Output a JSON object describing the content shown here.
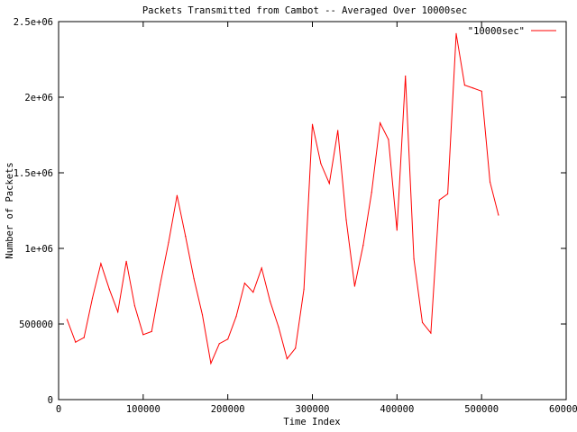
{
  "chart_data": {
    "type": "line",
    "title": "Packets Transmitted from Cambot -- Averaged Over 10000sec",
    "xlabel": "Time Index",
    "ylabel": "Number of Packets",
    "xlim": [
      0,
      600000
    ],
    "ylim": [
      0,
      2500000
    ],
    "x_ticks": [
      0,
      100000,
      200000,
      300000,
      400000,
      500000,
      600000
    ],
    "x_tick_labels": [
      "0",
      "100000",
      "200000",
      "300000",
      "400000",
      "500000",
      "600000"
    ],
    "y_ticks": [
      0,
      500000,
      1000000,
      1500000,
      2000000,
      2500000
    ],
    "y_tick_labels": [
      "0",
      "500000",
      "1e+06",
      "1.5e+06",
      "2e+06",
      "2.5e+06"
    ],
    "grid": false,
    "legend_position": "top-right",
    "series": [
      {
        "name": "\"10000sec\"",
        "color": "#ff0000",
        "x": [
          10000,
          20000,
          30000,
          40000,
          50000,
          60000,
          70000,
          80000,
          90000,
          100000,
          110000,
          120000,
          130000,
          140000,
          150000,
          160000,
          170000,
          180000,
          190000,
          200000,
          210000,
          220000,
          230000,
          240000,
          250000,
          260000,
          270000,
          280000,
          290000,
          300000,
          310000,
          320000,
          330000,
          340000,
          350000,
          360000,
          370000,
          380000,
          390000,
          400000,
          410000,
          420000,
          430000,
          440000,
          450000,
          460000,
          470000,
          480000,
          490000,
          500000,
          510000,
          520000
        ],
        "y": [
          530000,
          380000,
          410000,
          670000,
          900000,
          730000,
          580000,
          915000,
          620000,
          430000,
          450000,
          760000,
          1040000,
          1350000,
          1080000,
          800000,
          560000,
          240000,
          370000,
          400000,
          550000,
          770000,
          710000,
          870000,
          650000,
          480000,
          270000,
          340000,
          730000,
          1820000,
          1560000,
          1430000,
          1780000,
          1190000,
          750000,
          1020000,
          1370000,
          1830000,
          1720000,
          1120000,
          2140000,
          930000,
          510000,
          440000,
          1320000,
          1360000,
          2420000,
          2080000,
          2060000,
          2040000,
          1440000,
          1220000
        ]
      }
    ]
  }
}
